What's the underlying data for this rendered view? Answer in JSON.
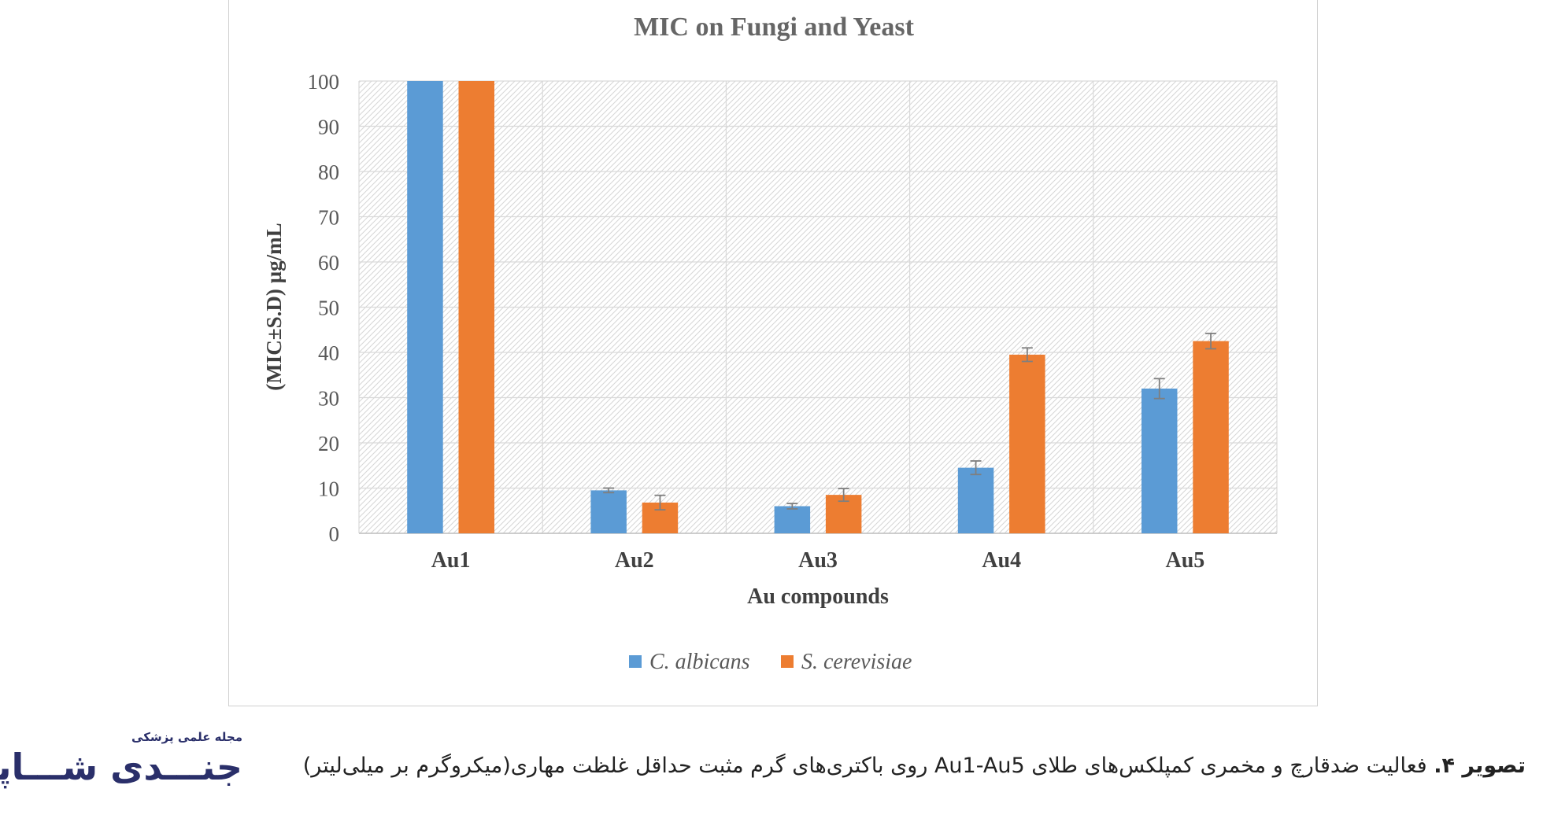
{
  "chart_data": {
    "type": "bar",
    "title": "MIC on Fungi and Yeast",
    "xlabel": "Au compounds",
    "ylabel": "(MIC±S.D) µg/mL",
    "categories": [
      "Au1",
      "Au2",
      "Au3",
      "Au4",
      "Au5"
    ],
    "ylim": [
      0,
      100
    ],
    "yticks": [
      0,
      10,
      20,
      30,
      40,
      50,
      60,
      70,
      80,
      90,
      100
    ],
    "grid": true,
    "legend_position": "bottom",
    "series": [
      {
        "name": "C. albicans",
        "color": "#5b9bd5",
        "values": [
          100,
          9.5,
          6,
          14.5,
          32
        ],
        "errors": [
          0,
          0.5,
          0.6,
          1.5,
          2.2
        ]
      },
      {
        "name": "S. cerevisiae",
        "color": "#ed7d31",
        "values": [
          100,
          6.8,
          8.5,
          39.5,
          42.5
        ],
        "errors": [
          0,
          1.6,
          1.4,
          1.5,
          1.7
        ]
      }
    ]
  },
  "caption": {
    "lead": "تصویر ۴.",
    "text": " فعالیت ضدقارچ و مخمری کمپلکس‌های طلای Au1-Au5 روی باکتری‌های گرم مثبت حداقل غلظت مهاری(میکروگرم بر میلی‌لیتر)"
  },
  "logo": {
    "subtitle": "مجله علمی پزشکی",
    "name": "جنـــدی شـــاپور"
  }
}
